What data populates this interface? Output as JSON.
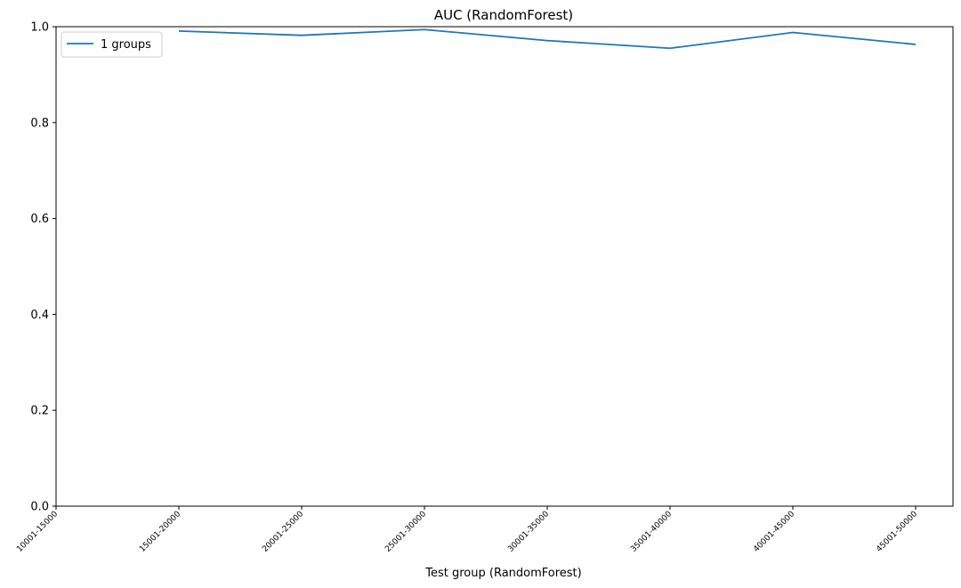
{
  "chart_data": {
    "type": "line",
    "title": "AUC (RandomForest)",
    "xlabel": "Test group (RandomForest)",
    "ylabel": "",
    "categories": [
      "10001-15000",
      "15001-20000",
      "20001-25000",
      "25001-30000",
      "30001-35000",
      "35001-40000",
      "40001-45000",
      "45001-50000"
    ],
    "series": [
      {
        "name": "1 groups",
        "color": "#1f77b4",
        "values": [
          null,
          0.991,
          0.982,
          0.994,
          0.971,
          0.955,
          0.988,
          0.963
        ]
      }
    ],
    "ylim": [
      0,
      1.0
    ],
    "yticks": [
      "0.0",
      "0.2",
      "0.4",
      "0.6",
      "0.8",
      "1.0"
    ],
    "grid": false,
    "legend_position": "upper-left"
  }
}
